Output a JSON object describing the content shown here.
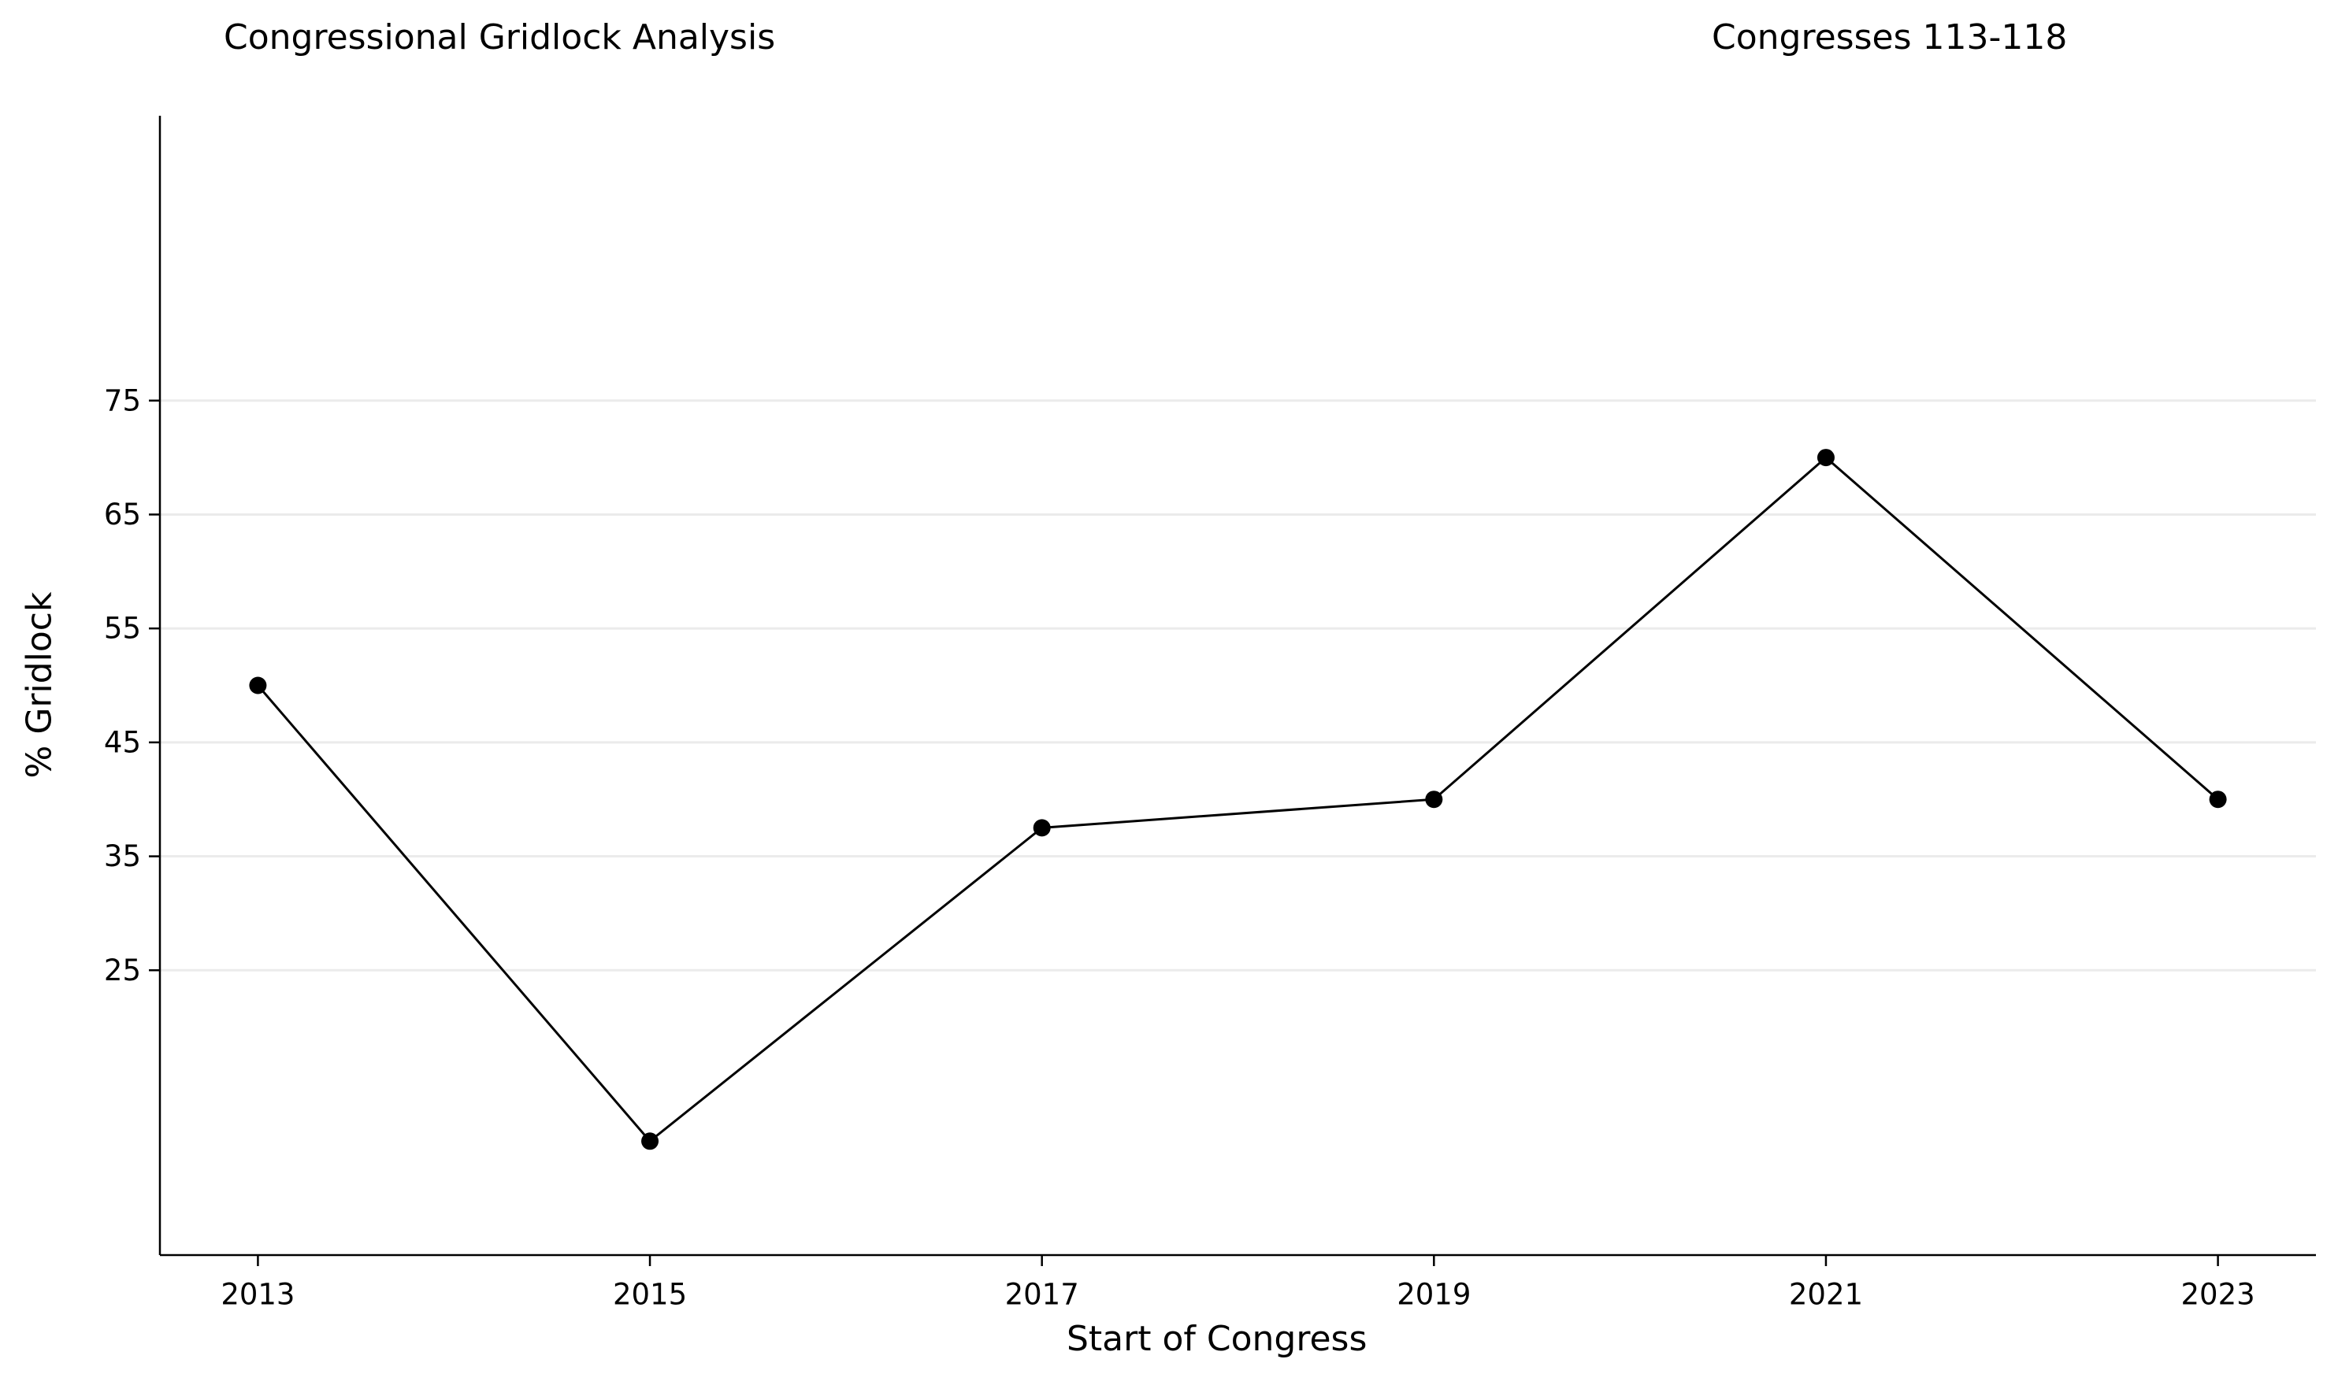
{
  "chart_data": {
    "type": "line",
    "title": "Congressional Gridlock Analysis",
    "subtitle": "Congresses 113-118",
    "xlabel": "Start of Congress",
    "ylabel": "% Gridlock",
    "x": [
      2013,
      2015,
      2017,
      2019,
      2021,
      2023
    ],
    "x_ticks": [
      "2013",
      "2015",
      "2017",
      "2019",
      "2021",
      "2023"
    ],
    "y_ticks": [
      "25",
      "35",
      "45",
      "55",
      "65",
      "75"
    ],
    "series": [
      {
        "values": [
          50,
          10,
          37.5,
          40,
          70,
          40
        ]
      }
    ],
    "xlim": [
      2012.5,
      2023.5
    ],
    "ylim": [
      0,
      100
    ],
    "grid": "horizontal",
    "line_color": "#000000",
    "marker_color": "#000000",
    "grid_color": "#ebebeb"
  }
}
